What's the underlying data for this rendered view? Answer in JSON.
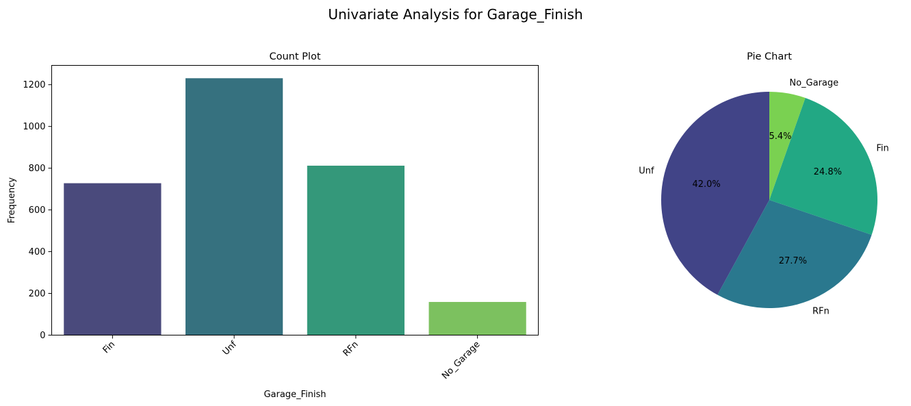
{
  "figure": {
    "suptitle": "Univariate Analysis for Garage_Finish"
  },
  "chart_data": [
    {
      "type": "bar",
      "title": "Count Plot",
      "xlabel": "Garage_Finish",
      "ylabel": "Frequency",
      "categories": [
        "Fin",
        "Unf",
        "RFn",
        "No_Garage"
      ],
      "values": [
        728,
        1231,
        812,
        159
      ],
      "colors": [
        "#4a4a7c",
        "#36717f",
        "#34987a",
        "#7cc15f"
      ],
      "ylim": [
        0,
        1292.55
      ],
      "yticks": [
        0,
        200,
        400,
        600,
        800,
        1000,
        1200
      ],
      "xtick_rotation": 45,
      "grid": false
    },
    {
      "type": "pie",
      "title": "Pie Chart",
      "labels": [
        "Unf",
        "RFn",
        "Fin",
        "No_Garage"
      ],
      "values": [
        42.0,
        27.7,
        24.8,
        5.4
      ],
      "percent_labels": [
        "42.0%",
        "27.7%",
        "24.8%",
        "5.4%"
      ],
      "colors": [
        "#414487",
        "#2a788e",
        "#22a884",
        "#7ad151"
      ],
      "start_angle_deg": 90,
      "direction": "counterclockwise"
    }
  ]
}
